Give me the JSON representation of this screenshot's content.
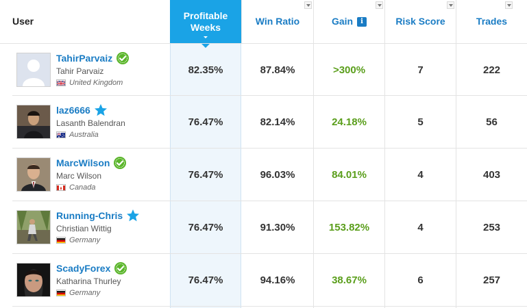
{
  "header": {
    "user": "User",
    "profitable_weeks": "Profitable Weeks",
    "win_ratio": "Win Ratio",
    "gain": "Gain",
    "gain_info": "i",
    "risk_score": "Risk Score",
    "trades": "Trades"
  },
  "colors": {
    "accent": "#1aa3e6",
    "link": "#1a7cc4",
    "gain": "#5a9e1b",
    "verified": "#5ab52a",
    "star": "#1aa3e6"
  },
  "rows": [
    {
      "username": "TahirParvaiz",
      "realname": "Tahir Parvaiz",
      "country": "United Kingdom",
      "flag": "uk-flag",
      "badge": "verified-check-icon",
      "profitable_weeks": "82.35%",
      "win_ratio": "87.84%",
      "gain": ">300%",
      "risk_score": "7",
      "trades": "222"
    },
    {
      "username": "laz6666",
      "realname": "Lasanth Balendran",
      "country": "Australia",
      "flag": "australia-flag",
      "badge": "star-icon",
      "profitable_weeks": "76.47%",
      "win_ratio": "82.14%",
      "gain": "24.18%",
      "risk_score": "5",
      "trades": "56"
    },
    {
      "username": "MarcWilson",
      "realname": "Marc Wilson",
      "country": "Canada",
      "flag": "canada-flag",
      "badge": "verified-check-icon",
      "profitable_weeks": "76.47%",
      "win_ratio": "96.03%",
      "gain": "84.01%",
      "risk_score": "4",
      "trades": "403"
    },
    {
      "username": "Running-Chris",
      "realname": "Christian Wittig",
      "country": "Germany",
      "flag": "germany-flag",
      "badge": "star-icon",
      "profitable_weeks": "76.47%",
      "win_ratio": "91.30%",
      "gain": "153.82%",
      "risk_score": "4",
      "trades": "253"
    },
    {
      "username": "ScadyForex",
      "realname": "Katharina Thurley",
      "country": "Germany",
      "flag": "germany-flag",
      "badge": "verified-check-icon",
      "profitable_weeks": "76.47%",
      "win_ratio": "94.16%",
      "gain": "38.67%",
      "risk_score": "6",
      "trades": "257"
    }
  ]
}
